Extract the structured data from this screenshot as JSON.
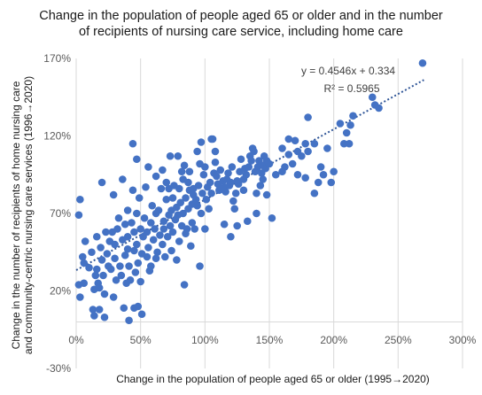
{
  "chart_data": {
    "type": "scatter",
    "title_lines": [
      "Change in the population of people aged 65 or older and in the number",
      "of recipients of nursing care service, including home care"
    ],
    "xlabel": "Change in the population of people aged 65 or older (1995→2020)",
    "ylabel_lines": [
      "Change in the number of recipients of home nursing care",
      "and community-centric nursing care services (1996→2020)"
    ],
    "xlim": [
      0,
      300
    ],
    "ylim": [
      -30,
      170
    ],
    "x_ticks": [
      {
        "value": 0,
        "label": "0%"
      },
      {
        "value": 50,
        "label": "50%"
      },
      {
        "value": 100,
        "label": "100%"
      },
      {
        "value": 150,
        "label": "150%"
      },
      {
        "value": 200,
        "label": "200%"
      },
      {
        "value": 250,
        "label": "250%"
      },
      {
        "value": 300,
        "label": "300%"
      }
    ],
    "y_ticks": [
      {
        "value": -30,
        "label": "-30%"
      },
      {
        "value": 20,
        "label": "20%"
      },
      {
        "value": 70,
        "label": "70%"
      },
      {
        "value": 120,
        "label": "120%"
      },
      {
        "value": 170,
        "label": "170%"
      }
    ],
    "grid": "vertical",
    "trendline": {
      "slope": 0.4546,
      "intercept": 33.4,
      "x_range": [
        0,
        270
      ],
      "equation": "y = 0.4546x + 0.334",
      "r2": "R² = 0.5965"
    },
    "colors": {
      "marker": "#4472c4",
      "trend": "#2f5597",
      "grid": "#d9d9d9"
    },
    "points": [
      [
        2,
        69
      ],
      [
        3,
        79
      ],
      [
        2,
        24
      ],
      [
        3,
        16
      ],
      [
        6,
        25
      ],
      [
        6,
        38
      ],
      [
        5,
        42
      ],
      [
        7,
        52
      ],
      [
        10,
        35
      ],
      [
        12,
        45
      ],
      [
        13,
        8
      ],
      [
        14,
        4
      ],
      [
        14,
        21
      ],
      [
        15,
        30
      ],
      [
        16,
        34
      ],
      [
        16,
        55
      ],
      [
        17,
        25
      ],
      [
        18,
        8
      ],
      [
        18,
        22
      ],
      [
        19,
        48
      ],
      [
        20,
        90
      ],
      [
        20,
        40
      ],
      [
        21,
        30
      ],
      [
        22,
        3
      ],
      [
        22,
        18
      ],
      [
        23,
        58
      ],
      [
        24,
        44
      ],
      [
        25,
        36
      ],
      [
        26,
        52
      ],
      [
        27,
        34
      ],
      [
        28,
        58
      ],
      [
        29,
        16
      ],
      [
        30,
        41
      ],
      [
        30,
        50
      ],
      [
        31,
        27
      ],
      [
        32,
        60
      ],
      [
        33,
        67
      ],
      [
        34,
        36
      ],
      [
        35,
        30
      ],
      [
        36,
        53
      ],
      [
        37,
        9
      ],
      [
        38,
        43
      ],
      [
        38,
        63
      ],
      [
        39,
        25
      ],
      [
        40,
        55
      ],
      [
        40,
        47
      ],
      [
        40,
        72
      ],
      [
        41,
        36
      ],
      [
        42,
        27
      ],
      [
        43,
        64
      ],
      [
        44,
        85
      ],
      [
        45,
        58
      ],
      [
        45,
        46
      ],
      [
        46,
        32
      ],
      [
        47,
        50
      ],
      [
        47,
        70
      ],
      [
        48,
        10
      ],
      [
        48,
        38
      ],
      [
        49,
        80
      ],
      [
        50,
        60
      ],
      [
        50,
        26
      ],
      [
        51,
        44
      ],
      [
        52,
        55
      ],
      [
        53,
        67
      ],
      [
        54,
        87
      ],
      [
        55,
        58
      ],
      [
        55,
        42
      ],
      [
        56,
        48
      ],
      [
        57,
        33
      ],
      [
        58,
        64
      ],
      [
        58,
        36
      ],
      [
        59,
        75
      ],
      [
        60,
        53
      ],
      [
        61,
        60
      ],
      [
        62,
        41
      ],
      [
        62,
        70
      ],
      [
        63,
        45
      ],
      [
        64,
        72
      ],
      [
        65,
        56
      ],
      [
        66,
        86
      ],
      [
        67,
        50
      ],
      [
        68,
        60
      ],
      [
        68,
        65
      ],
      [
        69,
        42
      ],
      [
        70,
        79
      ],
      [
        70,
        90
      ],
      [
        71,
        55
      ],
      [
        72,
        69
      ],
      [
        72,
        86
      ],
      [
        73,
        62
      ],
      [
        74,
        72
      ],
      [
        74,
        46
      ],
      [
        75,
        80
      ],
      [
        75,
        58
      ],
      [
        76,
        88
      ],
      [
        77,
        66
      ],
      [
        78,
        74
      ],
      [
        78,
        40
      ],
      [
        79,
        69
      ],
      [
        80,
        86
      ],
      [
        80,
        52
      ],
      [
        81,
        77
      ],
      [
        82,
        62
      ],
      [
        82,
        97
      ],
      [
        83,
        70
      ],
      [
        83,
        92
      ],
      [
        84,
        24
      ],
      [
        85,
        57
      ],
      [
        85,
        80
      ],
      [
        86,
        60
      ],
      [
        87,
        73
      ],
      [
        88,
        85
      ],
      [
        88,
        97
      ],
      [
        89,
        49
      ],
      [
        90,
        76
      ],
      [
        90,
        64
      ],
      [
        91,
        82
      ],
      [
        92,
        60
      ],
      [
        93,
        79
      ],
      [
        94,
        75
      ],
      [
        95,
        88
      ],
      [
        96,
        102
      ],
      [
        96,
        36
      ],
      [
        97,
        70
      ],
      [
        98,
        83
      ],
      [
        99,
        95
      ],
      [
        100,
        60
      ],
      [
        100,
        100
      ],
      [
        101,
        79
      ],
      [
        102,
        87
      ],
      [
        103,
        73
      ],
      [
        104,
        90
      ],
      [
        105,
        83
      ],
      [
        106,
        118
      ],
      [
        107,
        96
      ],
      [
        108,
        103
      ],
      [
        108,
        110
      ],
      [
        109,
        94
      ],
      [
        110,
        89
      ],
      [
        111,
        85
      ],
      [
        112,
        98
      ],
      [
        113,
        86
      ],
      [
        114,
        91
      ],
      [
        115,
        87
      ],
      [
        116,
        84
      ],
      [
        117,
        92
      ],
      [
        118,
        96
      ],
      [
        119,
        88
      ],
      [
        120,
        90
      ],
      [
        121,
        100
      ],
      [
        122,
        78
      ],
      [
        123,
        73
      ],
      [
        124,
        83
      ],
      [
        125,
        91
      ],
      [
        126,
        89
      ],
      [
        127,
        97
      ],
      [
        128,
        105
      ],
      [
        130,
        92
      ],
      [
        131,
        99
      ],
      [
        132,
        95
      ],
      [
        134,
        100
      ],
      [
        135,
        107
      ],
      [
        136,
        104
      ],
      [
        137,
        112
      ],
      [
        138,
        110
      ],
      [
        139,
        97
      ],
      [
        140,
        83
      ],
      [
        141,
        100
      ],
      [
        142,
        104
      ],
      [
        143,
        88
      ],
      [
        144,
        96
      ],
      [
        145,
        101
      ],
      [
        146,
        107
      ],
      [
        147,
        99
      ],
      [
        148,
        104
      ],
      [
        150,
        102
      ],
      [
        155,
        95
      ],
      [
        160,
        112
      ],
      [
        162,
        100
      ],
      [
        165,
        108
      ],
      [
        168,
        102
      ],
      [
        170,
        117
      ],
      [
        172,
        110
      ],
      [
        175,
        107
      ],
      [
        178,
        115
      ],
      [
        180,
        110
      ],
      [
        185,
        115
      ],
      [
        190,
        100
      ],
      [
        195,
        112
      ],
      [
        200,
        97
      ],
      [
        205,
        128
      ],
      [
        208,
        115
      ],
      [
        210,
        122
      ],
      [
        213,
        127
      ],
      [
        215,
        133
      ],
      [
        230,
        145
      ],
      [
        232,
        140
      ],
      [
        235,
        138
      ],
      [
        269,
        167
      ],
      [
        45,
        9
      ],
      [
        41,
        1
      ],
      [
        44,
        115
      ],
      [
        51,
        5
      ],
      [
        36,
        92
      ],
      [
        29,
        82
      ],
      [
        47,
        105
      ],
      [
        56,
        100
      ],
      [
        62,
        94
      ],
      [
        67,
        98
      ],
      [
        73,
        107
      ],
      [
        79,
        107
      ],
      [
        84,
        101
      ],
      [
        87,
        90
      ],
      [
        91,
        86
      ],
      [
        94,
        110
      ],
      [
        97,
        116
      ],
      [
        105,
        118
      ],
      [
        115,
        63
      ],
      [
        120,
        55
      ],
      [
        125,
        62
      ],
      [
        130,
        85
      ],
      [
        133,
        65
      ],
      [
        140,
        70
      ],
      [
        148,
        82
      ],
      [
        152,
        67
      ],
      [
        160,
        97
      ],
      [
        145,
        92
      ],
      [
        165,
        118
      ],
      [
        172,
        95
      ],
      [
        178,
        93
      ],
      [
        180,
        132
      ],
      [
        185,
        83
      ],
      [
        188,
        90
      ],
      [
        192,
        95
      ],
      [
        198,
        90
      ],
      [
        212,
        115
      ]
    ]
  }
}
